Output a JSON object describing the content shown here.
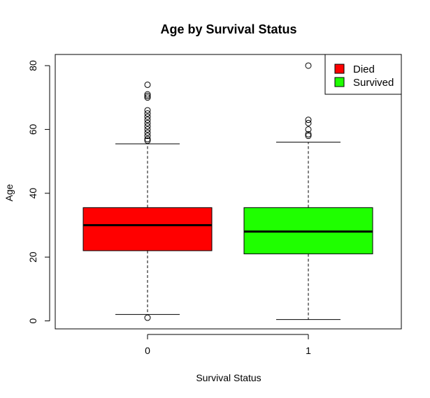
{
  "chart_data": {
    "type": "boxplot",
    "title": "Age by Survival Status",
    "xlabel": "Survival Status",
    "ylabel": "Age",
    "categories": [
      "0",
      "1"
    ],
    "ylim": [
      -2.5,
      83.5
    ],
    "yticks": [
      0,
      20,
      40,
      60,
      80
    ],
    "boxes": [
      {
        "category": "0",
        "whisker_low": 2,
        "q1": 22,
        "median": 30,
        "q3": 35.5,
        "whisker_high": 55.5,
        "outliers": [
          1,
          56.5,
          57,
          58,
          59,
          60,
          61,
          62,
          63,
          64,
          65,
          66,
          70,
          70.5,
          71,
          74
        ],
        "color": "#ff0000"
      },
      {
        "category": "1",
        "whisker_low": 0.42,
        "q1": 21,
        "median": 28,
        "q3": 35.5,
        "whisker_high": 56,
        "outliers": [
          58,
          58.5,
          60,
          62,
          63,
          80
        ],
        "color": "#1fff00"
      }
    ],
    "legend": {
      "position": "top-right",
      "entries": [
        {
          "label": "Died",
          "color": "#ff0000"
        },
        {
          "label": "Survived",
          "color": "#1fff00"
        }
      ]
    },
    "grid": false
  }
}
